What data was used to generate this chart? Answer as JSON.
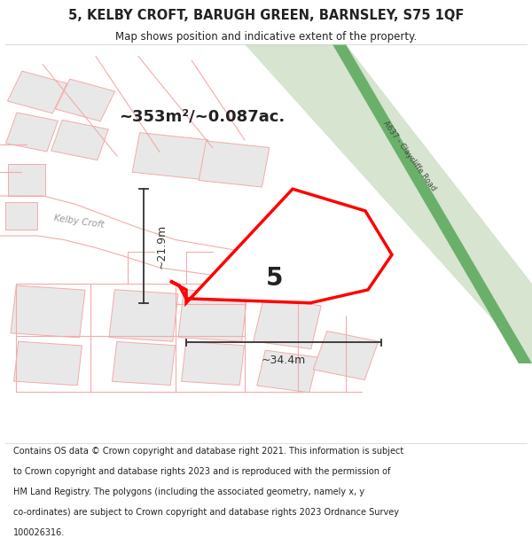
{
  "title_line1": "5, KELBY CROFT, BARUGH GREEN, BARNSLEY, S75 1QF",
  "title_line2": "Map shows position and indicative extent of the property.",
  "area_text": "~353m²/~0.087ac.",
  "label_number": "5",
  "dim_vertical": "~21.9m",
  "dim_horizontal": "~34.4m",
  "road_label": "A637 - Claycliffe Road",
  "footer_text": "Contains OS data © Crown copyright and database right 2021. This information is subject to Crown copyright and database rights 2023 and is reproduced with the permission of HM Land Registry. The polygons (including the associated geometry, namely x, y co-ordinates) are subject to Crown copyright and database rights 2023 Ordnance Survey 100026316.",
  "bg_color": "#ffffff",
  "map_bg": "#ffffff",
  "road_fill": "#d6e4d0",
  "road_stripe_fill": "#6ab06a",
  "parcel_fill": "#e8e8e8",
  "parcel_stroke": "#f5aaaa",
  "plot_fill": "#ffffff",
  "plot_stroke": "#ff0000",
  "dim_color": "#333333",
  "text_color": "#222222",
  "road_label_color": "#444444",
  "street_label_color": "#999999"
}
